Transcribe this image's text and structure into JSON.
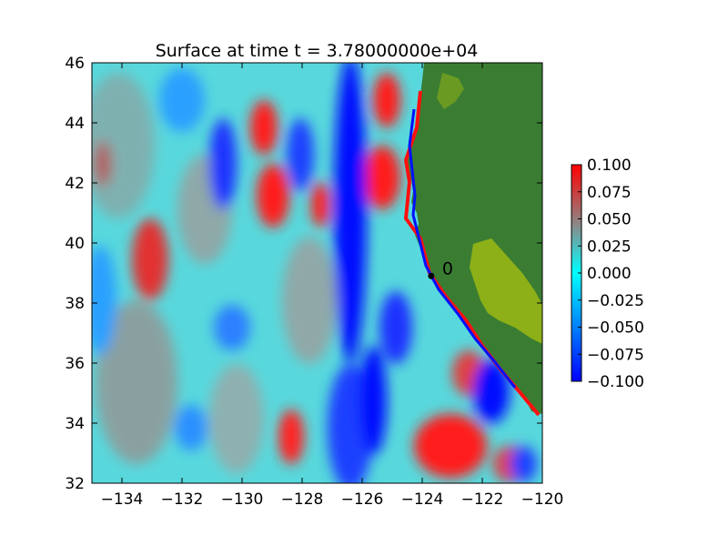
{
  "chart_data": {
    "type": "heatmap",
    "title": "Surface at time t = 3.78000000e+04",
    "xlabel": "",
    "ylabel": "",
    "xlim": [
      -135,
      -120
    ],
    "ylim": [
      32,
      46
    ],
    "xticks": [
      -134,
      -132,
      -130,
      -128,
      -126,
      -124,
      -122,
      -120
    ],
    "yticks": [
      32,
      34,
      36,
      38,
      40,
      42,
      44,
      46
    ],
    "xtick_labels": [
      "−134",
      "−132",
      "−130",
      "−128",
      "−126",
      "−124",
      "−122",
      "−120"
    ],
    "ytick_labels": [
      "32",
      "34",
      "36",
      "38",
      "40",
      "42",
      "44",
      "46"
    ],
    "colorbar": {
      "vmin": -0.1,
      "vmax": 0.1,
      "ticks": [
        0.1,
        0.075,
        0.05,
        0.025,
        0.0,
        -0.025,
        -0.05,
        -0.075,
        -0.1
      ],
      "tick_labels": [
        "0.100",
        "0.075",
        "0.050",
        "0.025",
        "0.000",
        "−0.025",
        "−0.050",
        "−0.075",
        "−0.100"
      ],
      "colormap": [
        "#0000ff",
        "#00ffff",
        "#808080",
        "#ff0000"
      ]
    },
    "gauge": {
      "label": "0",
      "lon": -123.7,
      "lat": 38.9,
      "color": "#000000"
    },
    "land_color": "#3a7d32",
    "land_highlight_color": "#8db018",
    "grid": false
  }
}
